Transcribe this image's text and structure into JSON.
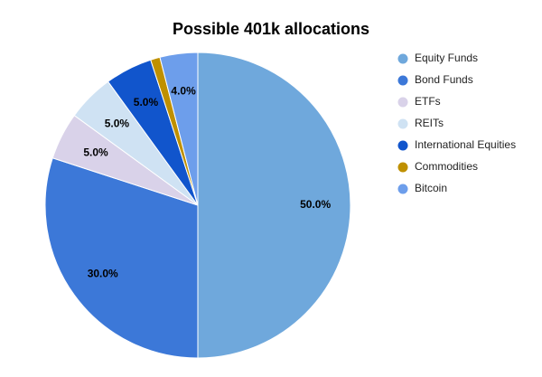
{
  "chart_data": {
    "type": "pie",
    "title": "Possible 401k allocations",
    "categories": [
      "Equity Funds",
      "Bond Funds",
      "ETFs",
      "REITs",
      "International Equities",
      "Commodities",
      "Bitcoin"
    ],
    "values": [
      50,
      30,
      5,
      5,
      5,
      1,
      4
    ],
    "value_labels": [
      "50.0%",
      "30.0%",
      "5.0%",
      "5.0%",
      "5.0%",
      null,
      "4.0%"
    ],
    "colors": [
      "#6fa8dc",
      "#3c78d8",
      "#d9d2e9",
      "#cfe2f3",
      "#1155cc",
      "#bf9000",
      "#6d9eeb"
    ],
    "legend": "right"
  }
}
